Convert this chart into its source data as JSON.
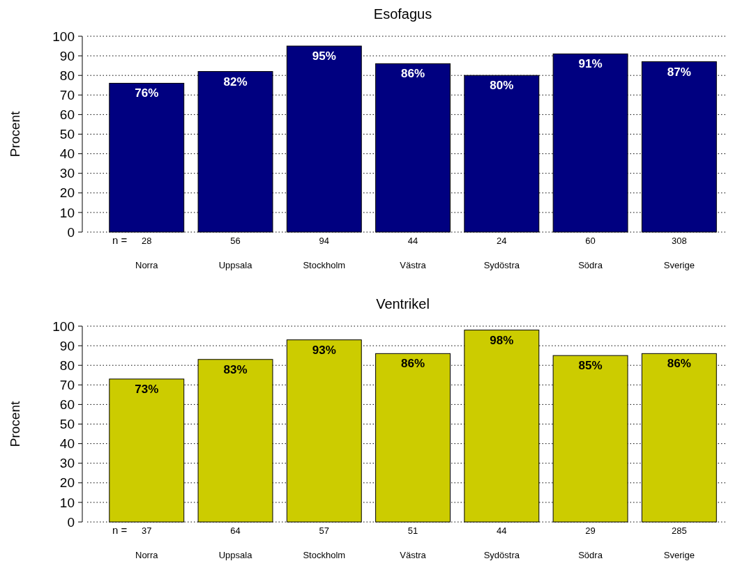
{
  "chart_data": [
    {
      "type": "bar",
      "title": "Esofagus",
      "ylabel": "Procent",
      "categories": [
        "Norra",
        "Uppsala",
        "Stockholm",
        "Västra",
        "Sydöstra",
        "Södra",
        "Sverige"
      ],
      "values": [
        76,
        82,
        95,
        86,
        80,
        91,
        87
      ],
      "color": "#000080",
      "value_labels": [
        "76%",
        "82%",
        "95%",
        "86%",
        "80%",
        "91%",
        "87%"
      ],
      "ylim": [
        0,
        100
      ],
      "yticks": [
        0,
        10,
        20,
        30,
        40,
        50,
        60,
        70,
        80,
        90,
        100
      ],
      "grid": "y",
      "annotations": [
        "n =",
        "28",
        "56",
        "94",
        "44",
        "24",
        "60",
        "308"
      ]
    },
    {
      "type": "bar",
      "title": "Ventrikel",
      "ylabel": "Procent",
      "categories": [
        "Norra",
        "Uppsala",
        "Stockholm",
        "Västra",
        "Sydöstra",
        "Södra",
        "Sverige"
      ],
      "values": [
        73,
        83,
        93,
        86,
        98,
        85,
        86
      ],
      "color": "#cccc00",
      "value_labels": [
        "73%",
        "83%",
        "93%",
        "86%",
        "98%",
        "85%",
        "86%"
      ],
      "ylim": [
        0,
        100
      ],
      "yticks": [
        0,
        10,
        20,
        30,
        40,
        50,
        60,
        70,
        80,
        90,
        100
      ],
      "grid": "y",
      "annotations": [
        "n =",
        "37",
        "64",
        "57",
        "51",
        "44",
        "29",
        "285"
      ]
    }
  ]
}
